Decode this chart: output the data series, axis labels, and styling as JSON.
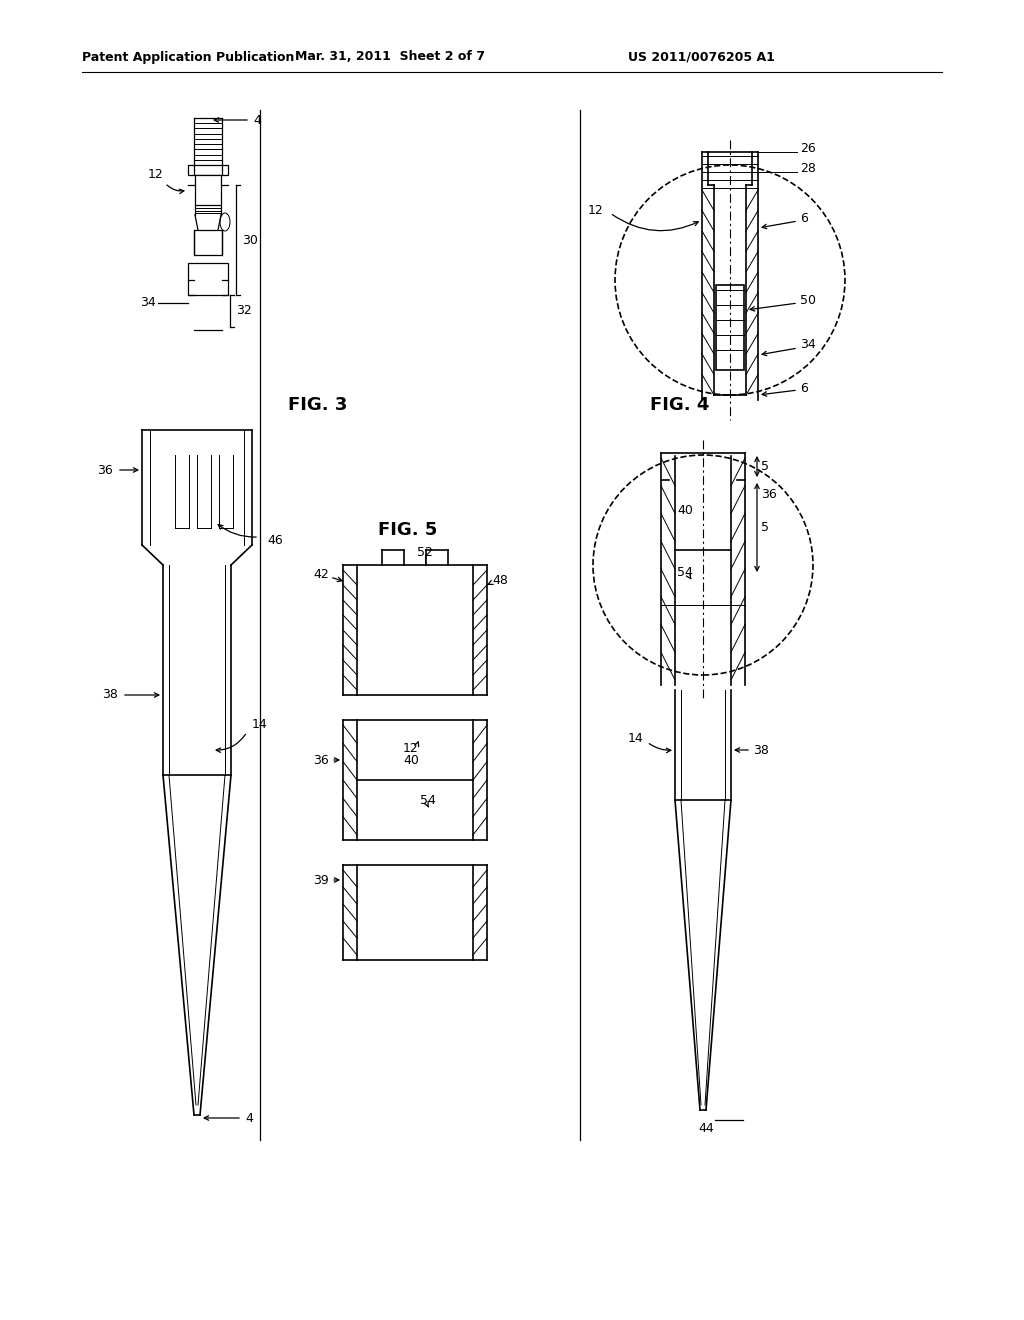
{
  "bg_color": "#ffffff",
  "header_left": "Patent Application Publication",
  "header_mid": "Mar. 31, 2011  Sheet 2 of 7",
  "header_right": "US 2011/0076205 A1",
  "fig3_label": "FIG. 3",
  "fig4_label": "FIG. 4",
  "fig5_label": "FIG. 5"
}
